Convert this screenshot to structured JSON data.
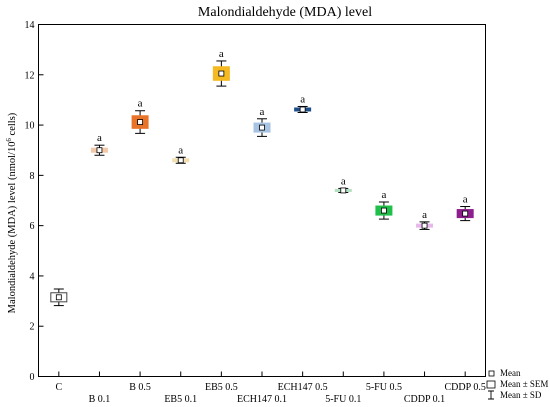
{
  "chart_data": {
    "type": "box",
    "title": "Malondialdehyde (MDA) level",
    "ylabel_main": "Malondialdehyde (MDA) level (nmol/10",
    "ylabel_sup": "6",
    "ylabel_tail": " cells)",
    "ylim": [
      0,
      14
    ],
    "yticks": [
      0,
      2,
      4,
      6,
      8,
      10,
      12,
      14
    ],
    "categories": [
      "C",
      "B 0.1",
      "B 0.5",
      "EB5 0.1",
      "EB5 0.5",
      "ECH147 0.1",
      "ECH147 0.5",
      "5-FU 0.1",
      "5-FU 0.5",
      "CDDP 0.1",
      "CDDP 0.5"
    ],
    "groups": [
      {
        "label": "C",
        "mean": 3.15,
        "sem": 0.18,
        "sd": 0.33,
        "color": "#ffffff",
        "edge": "#444444",
        "sig": ""
      },
      {
        "label": "B 0.1",
        "mean": 9.0,
        "sem": 0.08,
        "sd": 0.2,
        "color": "#f2c9a8",
        "edge": "#f2c9a8",
        "sig": "a"
      },
      {
        "label": "B 0.5",
        "mean": 10.12,
        "sem": 0.25,
        "sd": 0.45,
        "color": "#e8742a",
        "edge": "#e8742a",
        "sig": "a"
      },
      {
        "label": "EB5 0.1",
        "mean": 8.6,
        "sem": 0.06,
        "sd": 0.12,
        "color": "#f3dfb0",
        "edge": "#f3dfb0",
        "sig": "a"
      },
      {
        "label": "EB5 0.5",
        "mean": 12.05,
        "sem": 0.27,
        "sd": 0.5,
        "color": "#f5b921",
        "edge": "#f5b921",
        "sig": "a"
      },
      {
        "label": "ECH147 0.1",
        "mean": 9.9,
        "sem": 0.18,
        "sd": 0.35,
        "color": "#a8c4e2",
        "edge": "#a8c4e2",
        "sig": "a"
      },
      {
        "label": "ECH147 0.5",
        "mean": 10.62,
        "sem": 0.06,
        "sd": 0.12,
        "color": "#1f4e89",
        "edge": "#1f4e89",
        "sig": "a"
      },
      {
        "label": "5-FU 0.1",
        "mean": 7.4,
        "sem": 0.04,
        "sd": 0.08,
        "color": "#b2dfbf",
        "edge": "#b2dfbf",
        "sig": "a"
      },
      {
        "label": "5-FU 0.5",
        "mean": 6.6,
        "sem": 0.18,
        "sd": 0.34,
        "color": "#1fbf4a",
        "edge": "#1fbf4a",
        "sig": "a"
      },
      {
        "label": "CDDP 0.1",
        "mean": 6.0,
        "sem": 0.06,
        "sd": 0.15,
        "color": "#e8b8ea",
        "edge": "#e8b8ea",
        "sig": "a"
      },
      {
        "label": "CDDP 0.5",
        "mean": 6.48,
        "sem": 0.16,
        "sd": 0.28,
        "color": "#8e1e8e",
        "edge": "#8e1e8e",
        "sig": "a"
      }
    ],
    "legend": {
      "position": "bottom-right",
      "entries": [
        "Mean",
        "Mean ± SEM",
        "Mean ± SD"
      ]
    },
    "grid": false
  }
}
